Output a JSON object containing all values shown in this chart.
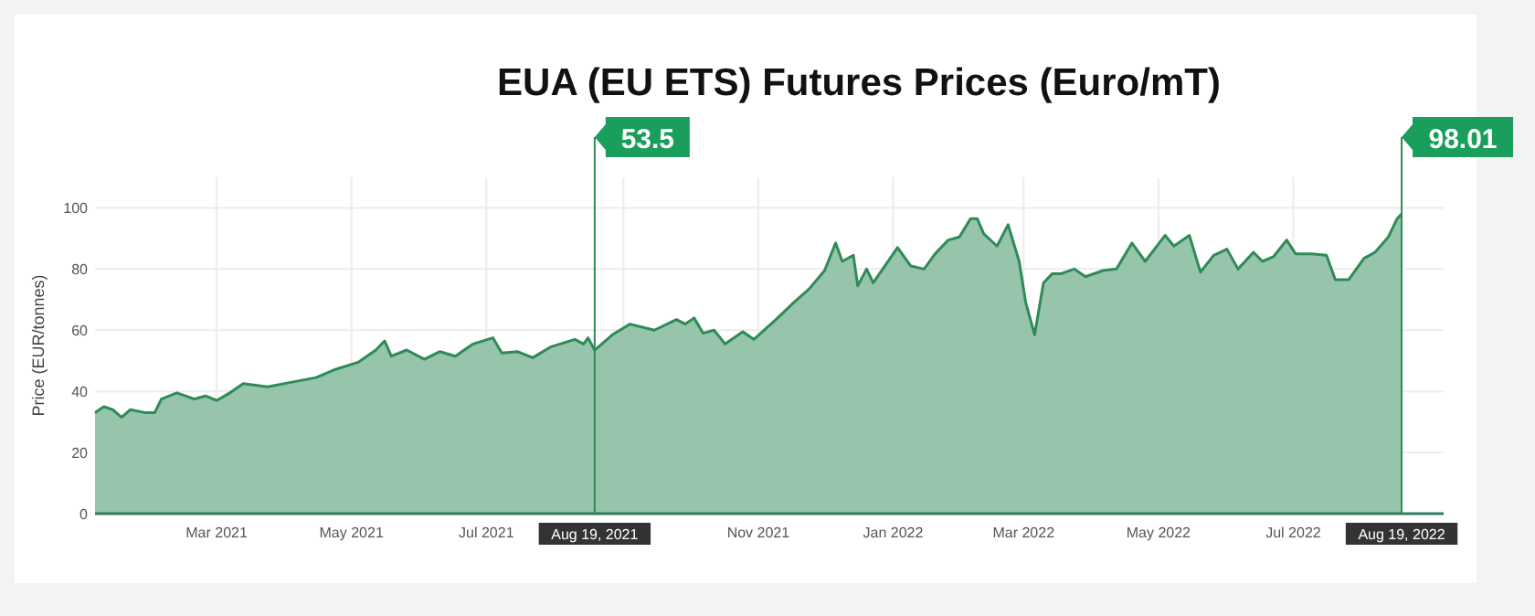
{
  "chart_data": {
    "type": "area",
    "title": "EUA (EU ETS) Futures Prices (Euro/mT)",
    "ylabel": "Price (EUR/tonnes)",
    "x": [
      "2021-01-05",
      "2021-01-09",
      "2021-01-13",
      "2021-01-17",
      "2021-01-21",
      "2021-01-28",
      "2021-02-01",
      "2021-02-04",
      "2021-02-11",
      "2021-02-19",
      "2021-02-24",
      "2021-03-01",
      "2021-03-07",
      "2021-03-13",
      "2021-03-24",
      "2021-04-04",
      "2021-04-15",
      "2021-04-23",
      "2021-05-04",
      "2021-05-12",
      "2021-05-16",
      "2021-05-19",
      "2021-05-26",
      "2021-06-03",
      "2021-06-10",
      "2021-06-17",
      "2021-06-25",
      "2021-07-04",
      "2021-07-08",
      "2021-07-15",
      "2021-07-22",
      "2021-07-30",
      "2021-08-10",
      "2021-08-14",
      "2021-08-16",
      "2021-08-19",
      "2021-08-27",
      "2021-09-04",
      "2021-09-15",
      "2021-09-25",
      "2021-09-29",
      "2021-10-03",
      "2021-10-07",
      "2021-10-12",
      "2021-10-17",
      "2021-10-25",
      "2021-10-30",
      "2021-11-09",
      "2021-11-17",
      "2021-11-24",
      "2021-12-01",
      "2021-12-06",
      "2021-12-09",
      "2021-12-14",
      "2021-12-16",
      "2021-12-20",
      "2021-12-23",
      "2022-01-03",
      "2022-01-09",
      "2022-01-15",
      "2022-01-20",
      "2022-01-26",
      "2022-01-31",
      "2022-02-05",
      "2022-02-08",
      "2022-02-11",
      "2022-02-17",
      "2022-02-22",
      "2022-02-27",
      "2022-03-02",
      "2022-03-06",
      "2022-03-10",
      "2022-03-14",
      "2022-03-18",
      "2022-03-24",
      "2022-03-29",
      "2022-04-06",
      "2022-04-12",
      "2022-04-19",
      "2022-04-25",
      "2022-05-04",
      "2022-05-08",
      "2022-05-15",
      "2022-05-20",
      "2022-05-26",
      "2022-06-01",
      "2022-06-06",
      "2022-06-13",
      "2022-06-17",
      "2022-06-22",
      "2022-06-28",
      "2022-07-02",
      "2022-07-09",
      "2022-07-16",
      "2022-07-20",
      "2022-07-26",
      "2022-08-02",
      "2022-08-07",
      "2022-08-13",
      "2022-08-17",
      "2022-08-19"
    ],
    "series": [
      {
        "color": "#2e8b57",
        "values": [
          33,
          35,
          34,
          31.5,
          34,
          33,
          33,
          37.5,
          39.5,
          37.5,
          38.5,
          37,
          39.5,
          42.5,
          41.5,
          43,
          44.5,
          47,
          49.5,
          53.5,
          56.5,
          51.5,
          53.5,
          50.5,
          53,
          51.5,
          55.5,
          57.5,
          52.5,
          53,
          51,
          54.5,
          57,
          55.5,
          57.5,
          53.5,
          58.5,
          62,
          60,
          63.5,
          62,
          64,
          59,
          60,
          55.5,
          59.5,
          57,
          63.5,
          69,
          73.5,
          79.5,
          88.5,
          82.5,
          84.5,
          74.5,
          80,
          75.5,
          87,
          81,
          80,
          85,
          89.5,
          90.5,
          96.5,
          96.5,
          91.5,
          87.5,
          94.5,
          82.5,
          69,
          58.5,
          75.5,
          78.5,
          78.5,
          80,
          77.5,
          79.5,
          80,
          88.5,
          82.5,
          91,
          87.5,
          91,
          79,
          84.5,
          86.5,
          80,
          85.5,
          82.5,
          84,
          89.5,
          85,
          85,
          84.5,
          76.5,
          76.5,
          83.5,
          85.5,
          90.5,
          96.5,
          98.01
        ]
      }
    ],
    "xlim": [
      "2021-01-05",
      "2022-09-07"
    ],
    "xticks": [
      {
        "value": "2021-03-01",
        "label": "Mar 2021"
      },
      {
        "value": "2021-05-01",
        "label": "May 2021"
      },
      {
        "value": "2021-07-01",
        "label": "Jul 2021"
      },
      {
        "value": "2021-09-01",
        "label": null
      },
      {
        "value": "2021-11-01",
        "label": "Nov 2021"
      },
      {
        "value": "2022-01-01",
        "label": "Jan 2022"
      },
      {
        "value": "2022-03-01",
        "label": "Mar 2022"
      },
      {
        "value": "2022-05-01",
        "label": "May 2022"
      },
      {
        "value": "2022-07-01",
        "label": "Jul 2022"
      }
    ],
    "ylim": [
      0,
      110
    ],
    "yticks": [
      0,
      20,
      40,
      60,
      80,
      100
    ],
    "grid": true,
    "ref_lines": [
      {
        "axis": "x",
        "value": "2021-08-19",
        "label": "Aug 19, 2021",
        "color": "#2e8b57"
      },
      {
        "axis": "x",
        "value": "2022-08-19",
        "label": "Aug 19, 2022",
        "color": "#2e8b57"
      }
    ],
    "annotations": [
      "53.5",
      "98.01"
    ]
  }
}
